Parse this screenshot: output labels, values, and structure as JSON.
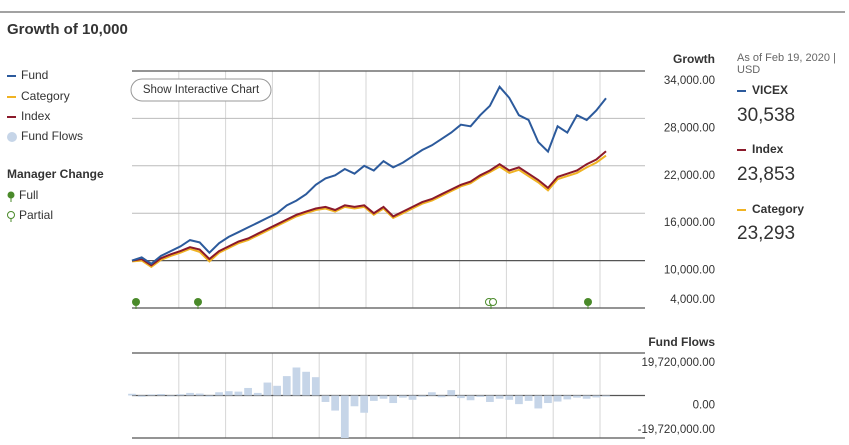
{
  "title": "Growth of 10,000",
  "legend": {
    "manager_change": {
      "title": "Manager Change",
      "items": [
        "Full",
        "Partial"
      ]
    }
  },
  "button": "Show Interactive Chart",
  "summary": {
    "as_of": "As of Feb 19, 2020 | USD",
    "items": [
      {
        "name": "VICEX",
        "value": "30,538"
      },
      {
        "name": "Index",
        "value": "23,853"
      },
      {
        "name": "Category",
        "value": "23,293"
      }
    ]
  },
  "chart_data": [
    {
      "type": "line",
      "title": "Growth",
      "ylim": [
        4000,
        34000
      ],
      "yticks": [
        {
          "value": 34000,
          "label": "34,000.00"
        },
        {
          "value": 28000,
          "label": "28,000.00"
        },
        {
          "value": 22000,
          "label": "22,000.00"
        },
        {
          "value": 16000,
          "label": "16,000.00"
        },
        {
          "value": 10000,
          "label": "10,000.00"
        },
        {
          "value": 4000,
          "label": "4,000.00"
        }
      ],
      "grid": true,
      "series": [
        {
          "name": "Fund",
          "color": "#2c5a9c",
          "values": [
            10000,
            10400,
            9600,
            10600,
            11200,
            11800,
            12600,
            12300,
            11000,
            12200,
            13000,
            13600,
            14200,
            14800,
            15400,
            16000,
            17000,
            17600,
            18400,
            19600,
            20400,
            20800,
            21600,
            21000,
            22000,
            21400,
            22600,
            21800,
            22400,
            23200,
            24000,
            24600,
            25400,
            26200,
            27200,
            27000,
            28400,
            29600,
            32000,
            30600,
            28400,
            27800,
            25000,
            23800,
            27000,
            26200,
            28400,
            27800,
            29000,
            30538
          ]
        },
        {
          "name": "Category",
          "color": "#f0b323",
          "values": [
            9900,
            10000,
            9200,
            10100,
            10600,
            11000,
            11500,
            11100,
            9900,
            11000,
            11600,
            12200,
            12600,
            13200,
            13800,
            14400,
            15000,
            15600,
            16000,
            16400,
            16600,
            16200,
            16800,
            16600,
            16800,
            15800,
            16600,
            15400,
            16000,
            16600,
            17200,
            17600,
            18200,
            18800,
            19400,
            19800,
            20600,
            21200,
            21900,
            21100,
            21500,
            20700,
            19900,
            18900,
            20300,
            20700,
            21100,
            21800,
            22400,
            23293
          ]
        },
        {
          "name": "Index",
          "color": "#8b1a2b",
          "values": [
            10000,
            10200,
            9400,
            10300,
            10800,
            11200,
            11700,
            11400,
            10200,
            11200,
            11800,
            12400,
            12800,
            13400,
            14000,
            14600,
            15200,
            15800,
            16200,
            16600,
            16800,
            16400,
            17000,
            16800,
            17000,
            16000,
            16800,
            15600,
            16200,
            16800,
            17400,
            17800,
            18400,
            19000,
            19600,
            20000,
            20800,
            21400,
            22200,
            21400,
            21800,
            21000,
            20200,
            19200,
            20600,
            21000,
            21400,
            22200,
            22800,
            23853
          ]
        }
      ]
    },
    {
      "type": "bar",
      "title": "Fund Flows",
      "ylim": [
        -19720000,
        19720000
      ],
      "yticks": [
        {
          "value": 19720000,
          "label": "19,720,000.00"
        },
        {
          "value": 0,
          "label": "0.00"
        },
        {
          "value": -19720000,
          "label": "-19,720,000.00"
        }
      ],
      "series": [
        {
          "name": "Fund Flows",
          "color": "#c6d5e8",
          "values": [
            800000,
            -600000,
            500000,
            700000,
            -400000,
            600000,
            1200000,
            900000,
            -500000,
            1500000,
            2000000,
            1800000,
            3500000,
            1200000,
            6000000,
            4500000,
            9000000,
            13000000,
            11000000,
            8500000,
            -3000000,
            -7000000,
            -19720000,
            -5000000,
            -8000000,
            -2500000,
            -1500000,
            -3500000,
            -1000000,
            -2000000,
            -600000,
            1500000,
            -800000,
            2500000,
            -1200000,
            -2200000,
            -700000,
            -3000000,
            -1500000,
            -2000000,
            -4000000,
            -2500000,
            -6000000,
            -3500000,
            -2800000,
            -1800000,
            -1000000,
            -1500000,
            -900000,
            -500000
          ]
        }
      ]
    }
  ]
}
